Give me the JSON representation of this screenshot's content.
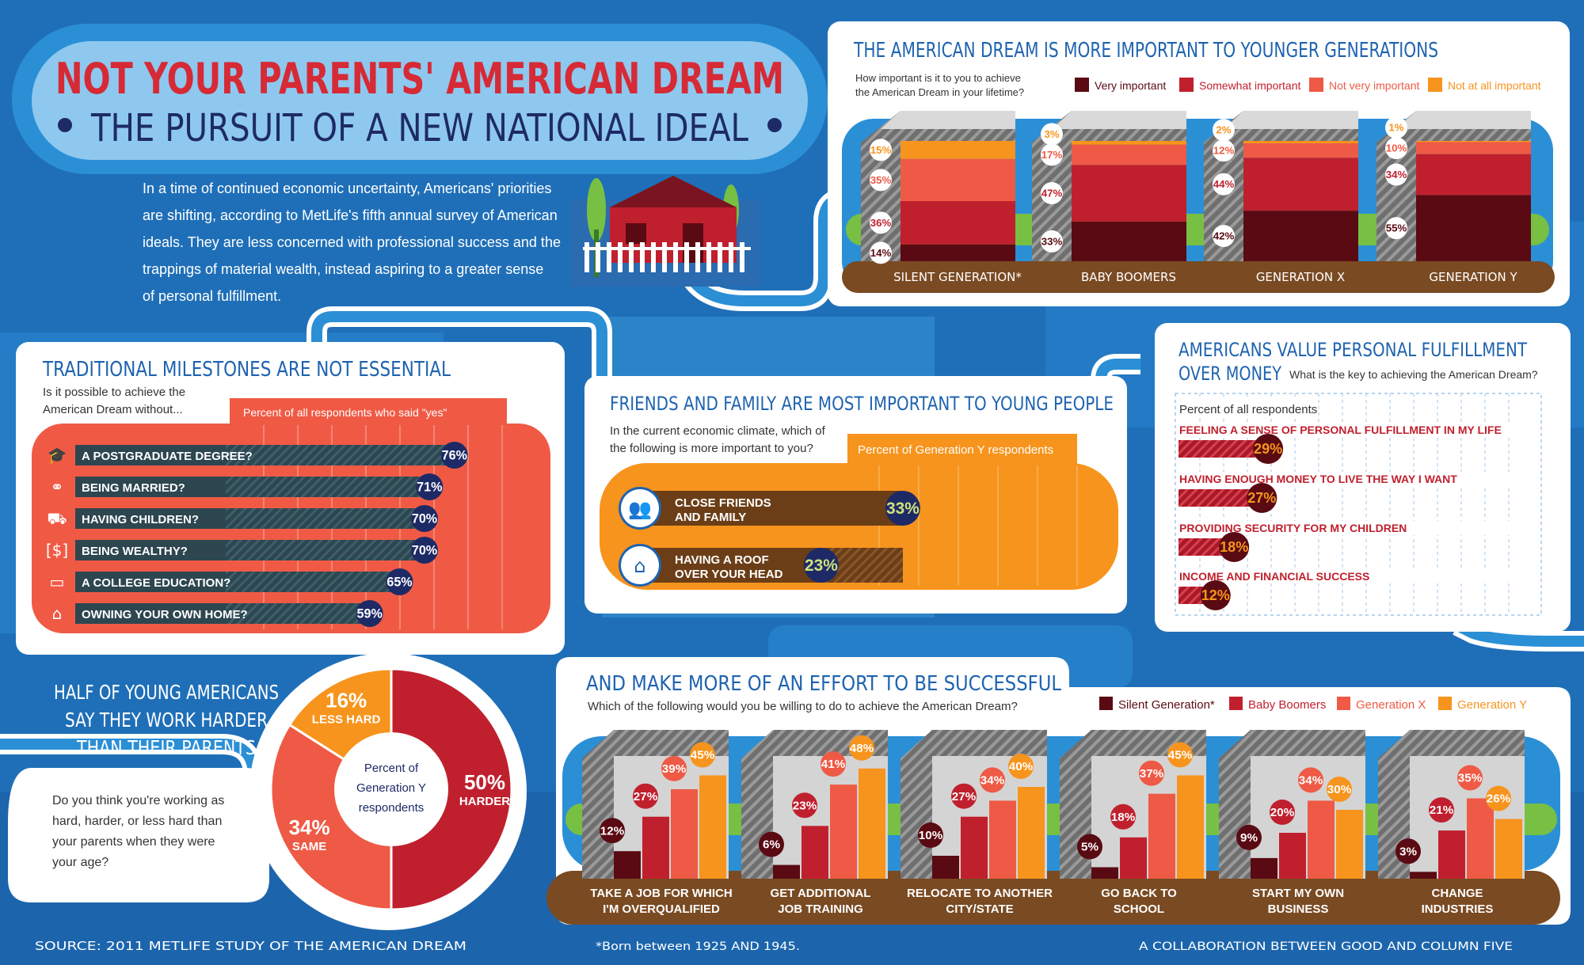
{
  "header": {
    "title": "NOT YOUR PARENTS' AMERICAN DREAM",
    "subtitle": "THE PURSUIT OF A NEW NATIONAL IDEAL",
    "intro": [
      "In a time of continued economic uncertainty, Americans' priorities",
      "are shifting, according to MetLife's fifth annual survey of American",
      "ideals. They are less concerned with professional success and the",
      "trappings of material wealth, instead aspiring to a greater sense",
      "of personal fulfillment."
    ]
  },
  "colors": {
    "very": "#5a0a12",
    "somewhat": "#c0202e",
    "notvery": "#ee5a45",
    "notall": "#f7941d",
    "navy": "#1e2a66",
    "brown": "#7a4a22",
    "tomato": "#f05a45",
    "orange": "#f7941d"
  },
  "footer": {
    "source": "SOURCE: 2011 METLIFE STUDY OF THE AMERICAN DREAM",
    "note": "*Born between 1925 AND 1945.",
    "credit": "A COLLABORATION BETWEEN GOOD AND COLUMN FIVE"
  },
  "chart_data": [
    {
      "id": "importance",
      "type": "bar",
      "stacked": true,
      "title": "THE AMERICAN DREAM IS MORE IMPORTANT TO YOUNGER GENERATIONS",
      "question": [
        "How important is it to you to achieve",
        "the American Dream in your lifetime?"
      ],
      "categories": [
        "SILENT GENERATION*",
        "BABY BOOMERS",
        "GENERATION X",
        "GENERATION Y"
      ],
      "series": [
        {
          "name": "Very important",
          "values": [
            14,
            33,
            42,
            55
          ]
        },
        {
          "name": "Somewhat important",
          "values": [
            36,
            47,
            44,
            34
          ]
        },
        {
          "name": "Not very important",
          "values": [
            35,
            17,
            12,
            10
          ]
        },
        {
          "name": "Not at all important",
          "values": [
            15,
            3,
            2,
            1
          ]
        }
      ],
      "unit": "%"
    },
    {
      "id": "milestones",
      "type": "bar",
      "orientation": "horizontal",
      "title": "TRADITIONAL MILESTONES ARE NOT ESSENTIAL",
      "question": [
        "Is it possible to achieve the",
        "American Dream without..."
      ],
      "legend": "Percent of all respondents who said \"yes\"",
      "categories": [
        "A POSTGRADUATE DEGREE?",
        "BEING MARRIED?",
        "HAVING CHILDREN?",
        "BEING WEALTHY?",
        "A COLLEGE EDUCATION?",
        "OWNING YOUR OWN HOME?"
      ],
      "icons": [
        "graduation-cap-icon",
        "rings-icon",
        "stroller-icon",
        "money-icon",
        "book-icon",
        "house-icon"
      ],
      "icon_glyphs": [
        "🎓",
        "⚭",
        "⛟",
        "[$]",
        "▭",
        "⌂"
      ],
      "values": [
        76,
        71,
        70,
        70,
        65,
        59
      ],
      "unit": "%"
    },
    {
      "id": "friends",
      "type": "bar",
      "orientation": "horizontal",
      "title": "FRIENDS AND FAMILY ARE MOST IMPORTANT TO YOUNG PEOPLE",
      "question": [
        "In the current economic climate, which of",
        "the following is more important to you?"
      ],
      "legend": "Percent of Generation Y respondents",
      "categories": [
        [
          "CLOSE FRIENDS",
          "AND FAMILY"
        ],
        [
          "HAVING A ROOF",
          "OVER YOUR HEAD"
        ]
      ],
      "values": [
        33,
        23
      ],
      "unit": "%"
    },
    {
      "id": "fulfillment",
      "type": "bar",
      "orientation": "horizontal",
      "title": [
        "AMERICANS VALUE PERSONAL FULFILLMENT",
        "OVER MONEY"
      ],
      "question": "What is the key to achieving the American Dream?",
      "legend": "Percent of all respondents",
      "categories": [
        "FEELING A SENSE OF PERSONAL FULFILLMENT IN MY LIFE",
        "HAVING ENOUGH MONEY TO LIVE THE WAY I WANT",
        "PROVIDING SECURITY FOR MY CHILDREN",
        "INCOME AND FINANCIAL SUCCESS"
      ],
      "values": [
        29,
        27,
        18,
        12
      ],
      "unit": "%"
    },
    {
      "id": "harder",
      "type": "pie",
      "title": [
        "HALF OF YOUNG AMERICANS",
        "SAY THEY WORK HARDER",
        "THAN THEIR PARENTS"
      ],
      "question": [
        "Do you think you're working as",
        "hard, harder, or less hard than",
        "your parents when they were",
        "your age?"
      ],
      "center_label": [
        "Percent of",
        "Generation Y",
        "respondents"
      ],
      "slices": [
        {
          "label": "HARDER",
          "value": 50
        },
        {
          "label": "SAME",
          "value": 34
        },
        {
          "label": "LESS HARD",
          "value": 16
        }
      ],
      "unit": "%"
    },
    {
      "id": "effort",
      "type": "bar",
      "title": "AND MAKE MORE OF AN EFFORT TO BE SUCCESSFUL",
      "question": "Which of the following would you be willing to do to achieve the American Dream?",
      "categories": [
        [
          "TAKE A JOB FOR WHICH",
          "I'M OVERQUALIFIED"
        ],
        [
          "GET ADDITIONAL",
          "JOB TRAINING"
        ],
        [
          "RELOCATE TO ANOTHER",
          "CITY/STATE"
        ],
        [
          "GO BACK TO",
          "SCHOOL"
        ],
        [
          "START MY OWN",
          "BUSINESS"
        ],
        [
          "CHANGE",
          "INDUSTRIES"
        ]
      ],
      "series": [
        {
          "name": "Silent Generation*",
          "values": [
            12,
            6,
            10,
            5,
            9,
            3
          ]
        },
        {
          "name": "Baby Boomers",
          "values": [
            27,
            23,
            27,
            18,
            20,
            21
          ]
        },
        {
          "name": "Generation X",
          "values": [
            39,
            41,
            34,
            37,
            34,
            35
          ]
        },
        {
          "name": "Generation Y",
          "values": [
            45,
            48,
            40,
            45,
            30,
            26
          ]
        }
      ],
      "unit": "%"
    }
  ]
}
